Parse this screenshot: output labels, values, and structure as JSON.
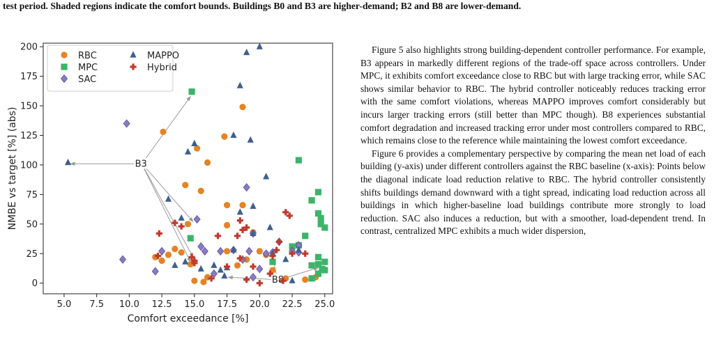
{
  "caption": "test period. Shaded regions indicate the comfort bounds. Buildings B0 and B3 are higher-demand; B2 and B8 are lower-demand.",
  "chart_data": {
    "type": "scatter",
    "xlabel": "Comfort exceedance [%]",
    "ylabel": "NMBE vs target [%] (abs)",
    "xlim": [
      3.4,
      25.6
    ],
    "ylim": [
      -9,
      203
    ],
    "xticks": [
      {
        "value": 5,
        "label": "5.0"
      },
      {
        "value": 7.5,
        "label": "7.5"
      },
      {
        "value": 10,
        "label": "10.0"
      },
      {
        "value": 12.5,
        "label": "12.5"
      },
      {
        "value": 15,
        "label": "15.0"
      },
      {
        "value": 17.5,
        "label": "17.5"
      },
      {
        "value": 20,
        "label": "20.0"
      },
      {
        "value": 22.5,
        "label": "22.5"
      },
      {
        "value": 25,
        "label": "25.0"
      }
    ],
    "yticks": [
      0,
      25,
      50,
      75,
      100,
      125,
      150,
      175,
      200
    ],
    "legend": "upper left",
    "series": [
      {
        "name": "RBC",
        "color": "#e58325",
        "marker": "circle",
        "x": [
          12.6,
          15.2,
          17.3,
          18.7,
          14.3,
          16.0,
          15.5,
          17.5,
          18.7,
          14.5,
          17.5,
          12.0,
          12.5,
          13.0,
          13.5,
          14.0,
          14.7,
          15.0,
          15.7,
          16.0,
          17.5,
          18.3,
          19.0,
          20.5,
          21.0,
          22.0,
          23.5,
          24.3,
          19.5,
          20.0
        ],
        "values": [
          128,
          114,
          124,
          149,
          83,
          102,
          78,
          66,
          66,
          50,
          49,
          22,
          19,
          24,
          29,
          26,
          16,
          2,
          1,
          5,
          27,
          15,
          20,
          24,
          11,
          4,
          3,
          5,
          43,
          27
        ]
      },
      {
        "name": "MPC",
        "color": "#3cb46a",
        "marker": "square",
        "x": [
          14.8,
          23.0,
          24.5,
          24.5,
          24.7,
          24.7,
          25.0,
          24.0,
          23.5,
          23.0,
          14.7,
          21.0,
          22.5,
          24.0,
          24.5,
          25.0,
          24.8,
          24.5,
          24.0,
          25.0,
          24.5
        ],
        "values": [
          162,
          104,
          77,
          59,
          55,
          50,
          47,
          70,
          40,
          32,
          38,
          18,
          31,
          15,
          16,
          18,
          12,
          8,
          4,
          11,
          22
        ]
      },
      {
        "name": "SAC",
        "color": "#8a79c4",
        "marker": "diamond",
        "x": [
          9.8,
          9.5,
          12.0,
          12.5,
          15.2,
          15.5,
          15.8,
          16.5,
          17.0,
          18.0,
          18.7,
          19.0,
          19.2,
          19.5,
          19.5,
          20.0,
          20.5,
          21.0,
          21.5,
          22.5,
          23.0,
          23.0
        ],
        "values": [
          135,
          20,
          10,
          27,
          54,
          31,
          27,
          8,
          27,
          28,
          20,
          81,
          27,
          42,
          5,
          12,
          25,
          26,
          35,
          27,
          26,
          32
        ]
      },
      {
        "name": "MAPPO",
        "color": "#3e5f8e",
        "marker": "triangle",
        "x": [
          5.3,
          13.0,
          14.5,
          14.0,
          15.0,
          16.5,
          17.0,
          17.3,
          17.5,
          18.0,
          18.5,
          18.5,
          19.0,
          19.3,
          19.5,
          19.5,
          20.0,
          20.5,
          20.8,
          21.0,
          22.0,
          22.5,
          18.0,
          13.5,
          14.3,
          23.0,
          15.5
        ],
        "values": [
          102,
          71,
          111,
          55,
          118,
          15,
          11,
          6,
          13,
          125,
          167,
          60,
          195,
          121,
          65,
          42,
          200,
          90,
          47,
          25,
          20,
          2,
          28,
          15,
          18,
          28,
          12
        ]
      },
      {
        "name": "Hybrid",
        "color": "#c0392b",
        "marker": "plus",
        "x": [
          12.2,
          12.3,
          13.5,
          14.0,
          14.8,
          15.0,
          15.0,
          16.3,
          16.8,
          17.5,
          18.3,
          18.5,
          18.7,
          18.5,
          19.0,
          19.5,
          20.0,
          20.8,
          21.0,
          21.3,
          21.5,
          22.0,
          22.3,
          22.5,
          23.5,
          19.0,
          21.8
        ],
        "values": [
          23,
          42,
          51,
          48,
          22,
          19,
          17,
          4,
          40,
          14,
          40,
          53,
          45,
          21,
          47,
          14,
          0,
          8,
          23,
          28,
          35,
          60,
          57,
          25,
          25,
          3,
          2
        ]
      }
    ],
    "annotations": [
      {
        "text": "B3",
        "x": 10.9,
        "y": 101,
        "arrow_x": [
          5.5,
          14.7,
          14.9,
          14.9,
          14.7
        ],
        "arrow_y": [
          101,
          158,
          52,
          22,
          18
        ]
      },
      {
        "text": "B8",
        "x": 21.4,
        "y": 3,
        "arrow_x": [
          17.6,
          21.0,
          24.5
        ],
        "arrow_y": [
          5,
          22,
          13
        ]
      }
    ]
  },
  "body": {
    "paragraphs": [
      "Figure 5 also highlights strong building-dependent controller performance. For example, B3 appears in markedly different regions of the trade-off space across controllers. Under MPC, it exhibits comfort exceedance close to RBC but with large tracking error, while SAC shows similar behavior to RBC. The hybrid controller noticeably reduces tracking error with the same comfort violations, whereas MAPPO improves comfort considerably but incurs larger tracking errors (still better than MPC though). B8 experiences substantial comfort degradation and increased tracking error under most controllers compared to RBC, which remains close to the reference while maintaining the lowest comfort exceedance.",
      "Figure 6 provides a complementary perspective by comparing the mean net load of each building (y-axis) under different controllers against the RBC baseline (x-axis): Points below the diagonal indicate load reduction relative to RBC. The hybrid controller consistently shifts buildings demand downward with a tight spread, indicating load reduction across all buildings in which higher-baseline load buildings contribute more strongly to load reduction. SAC also induces a reduction, but with a smoother, load-dependent trend. In contrast, centralized MPC exhibits a much wider dispersion,"
    ]
  }
}
